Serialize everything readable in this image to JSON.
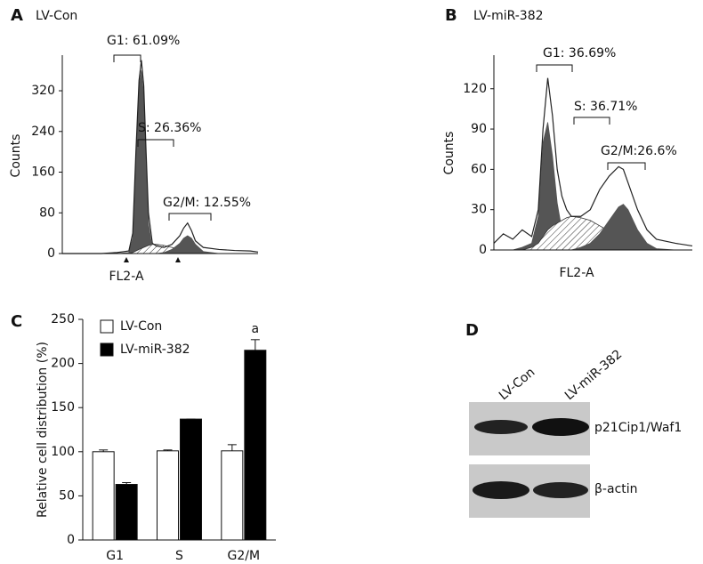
{
  "chart_data": [
    {
      "type": "area",
      "panel": "A",
      "title": "LV-Con",
      "xlabel": "FL2-A",
      "ylabel": "Counts",
      "x": [
        0,
        50,
        70,
        85,
        90,
        94,
        98,
        101,
        104,
        107,
        110,
        115,
        120,
        130,
        140,
        150,
        155,
        160,
        165,
        170,
        180,
        200,
        220,
        240,
        250
      ],
      "xlim": [
        0,
        250
      ],
      "ylim": [
        0,
        390
      ],
      "yticks": [
        0,
        80,
        160,
        240,
        320
      ],
      "values": [
        0,
        0,
        2,
        5,
        40,
        200,
        340,
        380,
        330,
        200,
        80,
        20,
        15,
        12,
        18,
        35,
        50,
        60,
        45,
        25,
        12,
        8,
        6,
        5,
        3
      ],
      "color": "#222222",
      "components": [
        {
          "color": "#555555",
          "values": [
            0,
            0,
            0,
            2,
            30,
            190,
            330,
            360,
            310,
            180,
            60,
            8,
            1,
            0,
            0,
            0,
            0,
            0,
            0,
            0,
            0,
            0,
            0,
            0,
            0
          ]
        },
        {
          "color": "#333333",
          "pattern": "hatch",
          "values": [
            0,
            0,
            0,
            0,
            2,
            5,
            8,
            10,
            12,
            14,
            16,
            18,
            18,
            16,
            12,
            8,
            5,
            3,
            2,
            1,
            0,
            0,
            0,
            0,
            0
          ]
        },
        {
          "color": "#555555",
          "values": [
            0,
            0,
            0,
            0,
            0,
            0,
            0,
            0,
            0,
            0,
            0,
            0,
            0,
            2,
            8,
            20,
            30,
            35,
            30,
            18,
            4,
            0,
            0,
            0,
            0
          ]
        }
      ],
      "annotations": [
        "G1: 61.09%",
        "S: 26.36%",
        "G2/M: 12.55%"
      ]
    },
    {
      "type": "area",
      "panel": "B",
      "title": "LV-miR-382",
      "xlabel": "FL2-A",
      "ylabel": "Counts",
      "x": [
        0,
        10,
        20,
        30,
        40,
        47,
        52,
        57,
        62,
        67,
        72,
        77,
        82,
        92,
        102,
        112,
        122,
        132,
        137,
        142,
        152,
        162,
        172,
        192,
        210
      ],
      "xlim": [
        0,
        210
      ],
      "ylim": [
        0,
        145
      ],
      "yticks": [
        0,
        30,
        60,
        90,
        120
      ],
      "values": [
        5,
        12,
        8,
        15,
        10,
        30,
        90,
        128,
        100,
        60,
        40,
        30,
        25,
        25,
        30,
        45,
        55,
        62,
        60,
        50,
        30,
        15,
        8,
        5,
        3
      ],
      "color": "#222222",
      "components": [
        {
          "color": "#555555",
          "values": [
            0,
            0,
            0,
            2,
            5,
            25,
            80,
            95,
            70,
            35,
            15,
            5,
            2,
            0,
            0,
            0,
            0,
            0,
            0,
            0,
            0,
            0,
            0,
            0,
            0
          ]
        },
        {
          "color": "#333333",
          "pattern": "hatch",
          "values": [
            0,
            0,
            0,
            0,
            2,
            5,
            10,
            15,
            18,
            20,
            22,
            24,
            25,
            24,
            22,
            18,
            14,
            10,
            8,
            6,
            3,
            1,
            0,
            0,
            0
          ]
        },
        {
          "color": "#555555",
          "values": [
            0,
            0,
            0,
            0,
            0,
            0,
            0,
            0,
            0,
            0,
            0,
            0,
            0,
            2,
            5,
            12,
            22,
            32,
            34,
            30,
            15,
            5,
            1,
            0,
            0
          ]
        }
      ],
      "annotations": [
        "G1: 36.69%",
        "S: 36.71%",
        "G2/M:26.6%"
      ]
    },
    {
      "type": "bar",
      "panel": "C",
      "ylabel": "Relative cell  distribution (%)",
      "categories": [
        "G1",
        "S",
        "G2/M"
      ],
      "series": [
        {
          "name": "LV-Con",
          "color": "#ffffff",
          "values": [
            100,
            101,
            101
          ],
          "errors": [
            2,
            1,
            7
          ]
        },
        {
          "name": "LV-miR-382",
          "color": "#000000",
          "values": [
            63,
            137,
            215
          ],
          "errors": [
            2,
            0,
            12
          ]
        }
      ],
      "ylim": [
        0,
        250
      ],
      "yticks": [
        0,
        50,
        100,
        150,
        200,
        250
      ],
      "annotations": [
        "a"
      ]
    }
  ],
  "blot": {
    "panel": "D",
    "lanes": [
      "LV-Con",
      "LV-miR-382"
    ],
    "rows": [
      "p21Cip1/Waf1",
      "β-actin"
    ]
  }
}
